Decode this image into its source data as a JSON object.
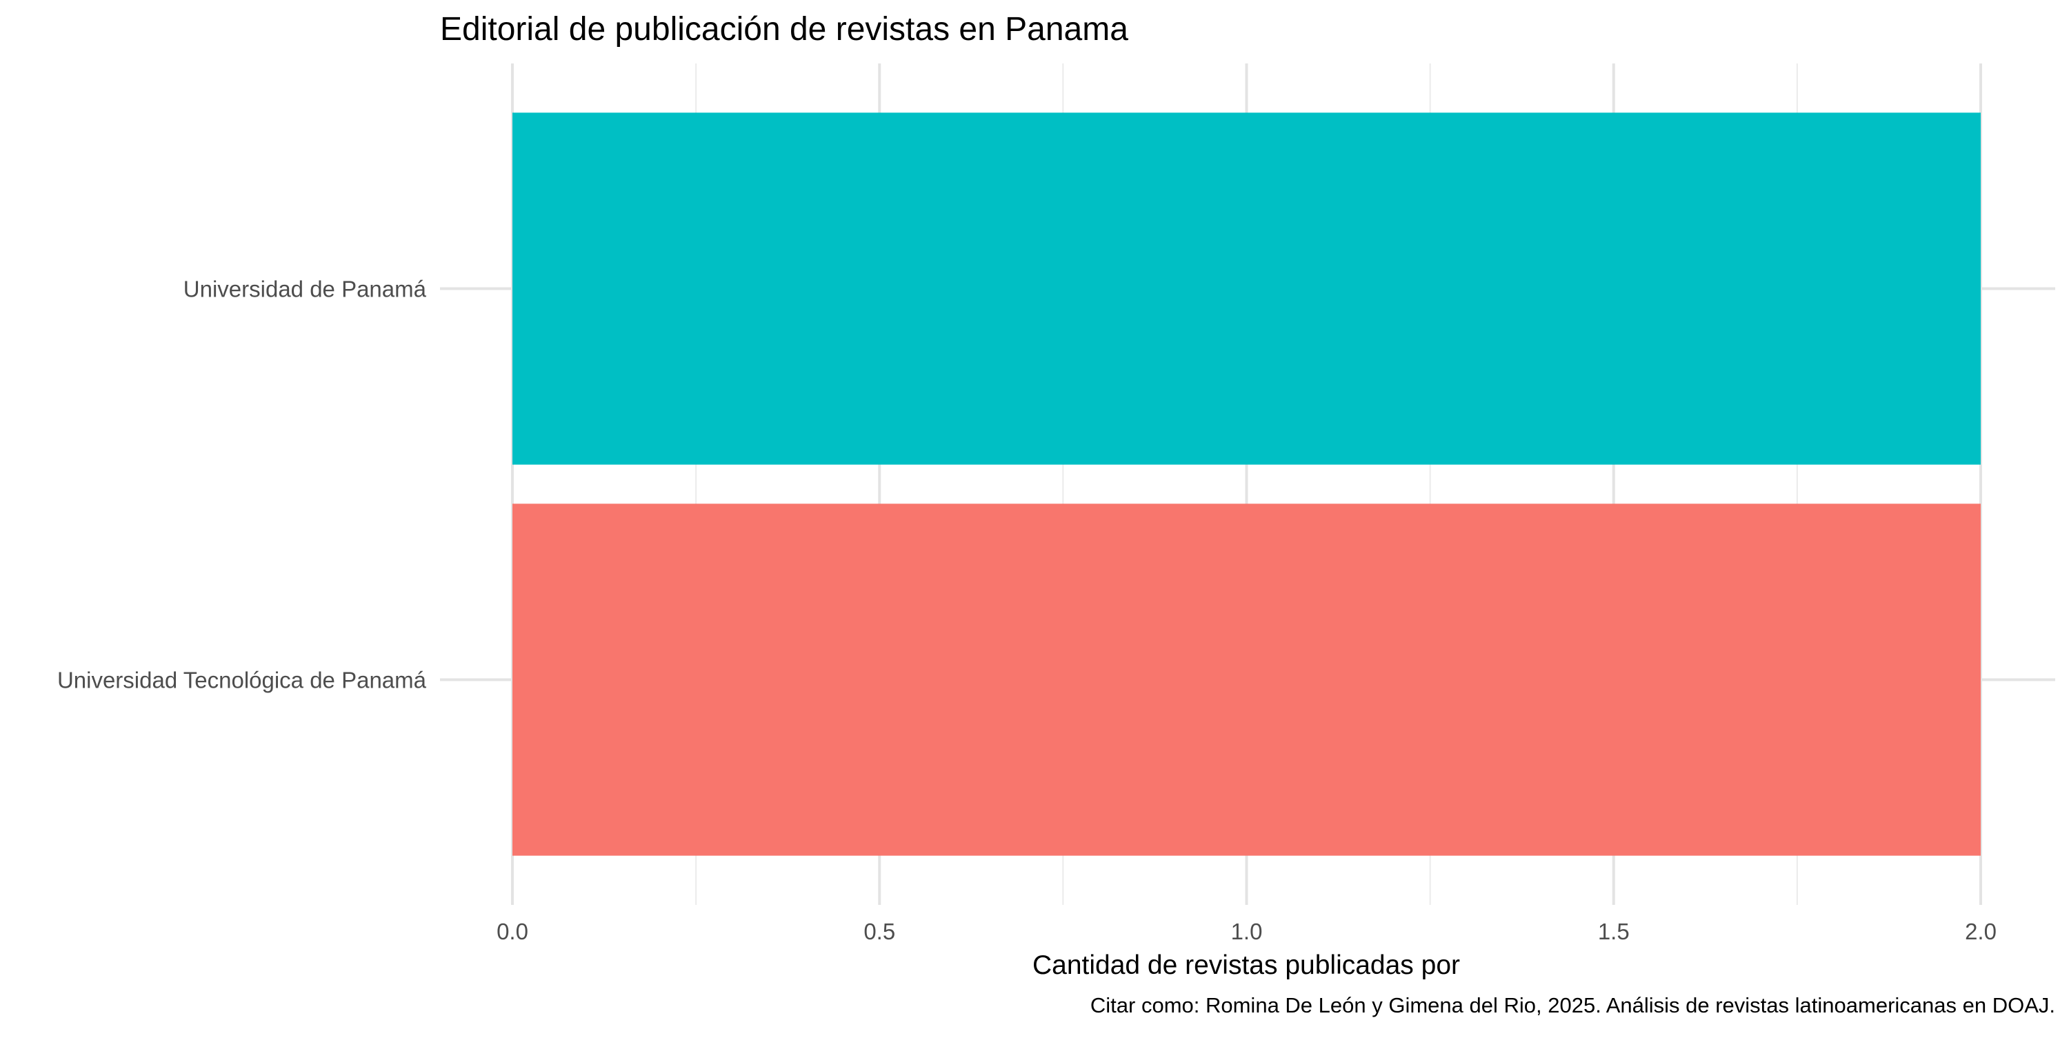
{
  "chart_data": {
    "type": "bar",
    "orientation": "horizontal",
    "title": "Editorial de publicación de revistas en Panama",
    "xlabel": "Cantidad de revistas publicadas por",
    "ylabel": "",
    "caption": "Citar como: Romina De León y Gimena del Rio, 2025. Análisis de revistas latinoamericanas en DOAJ.",
    "categories": [
      "Universidad de Panamá",
      "Universidad Tecnológica de Panamá"
    ],
    "values": [
      2,
      2
    ],
    "colors": [
      "#00BFC4",
      "#F8766D"
    ],
    "xlim": [
      0,
      2
    ],
    "xticks": [
      0.0,
      0.5,
      1.0,
      1.5,
      2.0
    ],
    "xtick_labels": [
      "0.0",
      "0.5",
      "1.0",
      "1.5",
      "2.0"
    ],
    "grid": true,
    "legend": "none"
  }
}
